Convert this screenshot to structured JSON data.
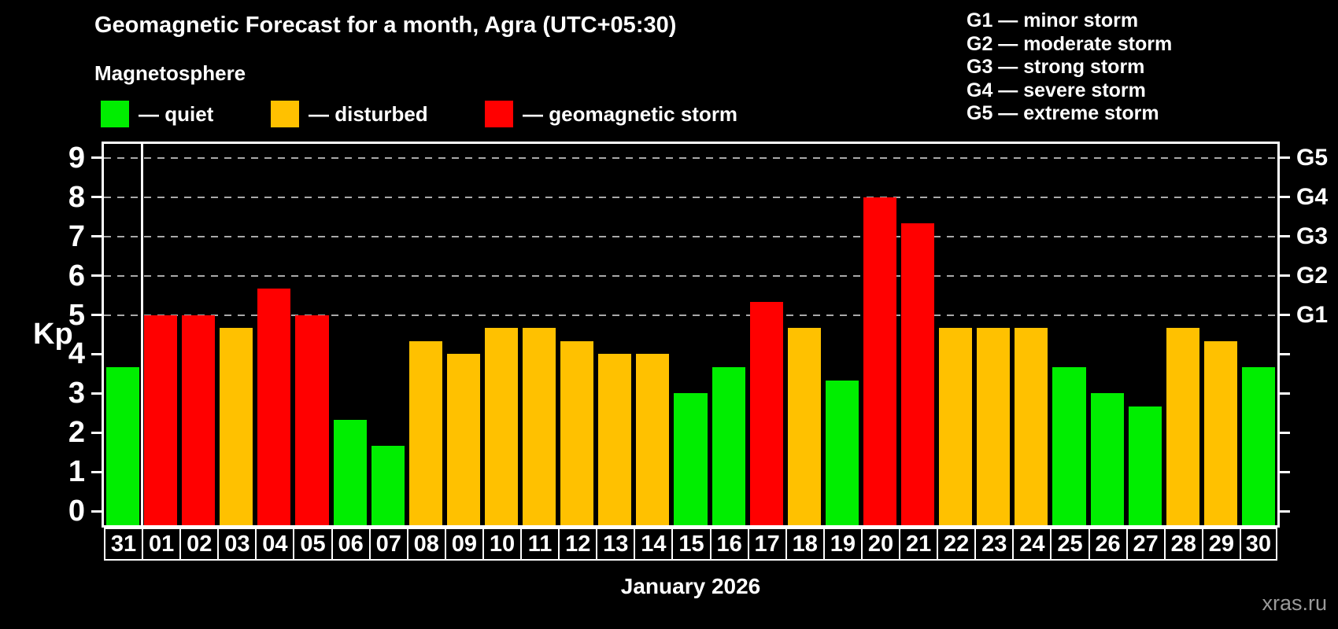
{
  "header": {
    "title": "Geomagnetic Forecast for a month, Agra (UTC+05:30)",
    "subtitle": "Magnetosphere"
  },
  "legend": {
    "items": [
      {
        "level": "quiet",
        "label": "— quiet"
      },
      {
        "level": "disturbed",
        "label": "— disturbed"
      },
      {
        "level": "storm",
        "label": "— geomagnetic storm"
      }
    ]
  },
  "storm_scale": {
    "items": [
      "G1 — minor storm",
      "G2 — moderate storm",
      "G3 — strong storm",
      "G4 — severe storm",
      "G5 — extreme storm"
    ]
  },
  "footer": {
    "month_label": "January 2026",
    "watermark": "xras.ru"
  },
  "chart_data": {
    "type": "bar",
    "title": "Geomagnetic Forecast for a month, Agra (UTC+05:30)",
    "xlabel": "January 2026",
    "ylabel": "Kp",
    "ylim": [
      0,
      9
    ],
    "yticks": [
      0,
      1,
      2,
      3,
      4,
      5,
      6,
      7,
      8,
      9
    ],
    "gridlines_at": [
      5,
      6,
      7,
      8,
      9
    ],
    "grid_style": "dashed horizontal gray lines at Kp 5–9 only",
    "right_axis": [
      {
        "value": 5,
        "label": "G1"
      },
      {
        "value": 6,
        "label": "G2"
      },
      {
        "value": 7,
        "label": "G3"
      },
      {
        "value": 8,
        "label": "G4"
      },
      {
        "value": 9,
        "label": "G5"
      }
    ],
    "level_colors": {
      "quiet": "#00ee00",
      "disturbed": "#ffc100",
      "storm": "#ff0000"
    },
    "background_color": "#000000",
    "axis_color": "#ffffff",
    "month_separator_after_index": 0,
    "categories": [
      "31",
      "01",
      "02",
      "03",
      "04",
      "05",
      "06",
      "07",
      "08",
      "09",
      "10",
      "11",
      "12",
      "13",
      "14",
      "15",
      "16",
      "17",
      "18",
      "19",
      "20",
      "21",
      "22",
      "23",
      "24",
      "25",
      "26",
      "27",
      "28",
      "29",
      "30"
    ],
    "days": [
      {
        "day": "31",
        "value": 3.67,
        "level": "quiet"
      },
      {
        "day": "01",
        "value": 5.0,
        "level": "storm"
      },
      {
        "day": "02",
        "value": 5.0,
        "level": "storm"
      },
      {
        "day": "03",
        "value": 4.67,
        "level": "disturbed"
      },
      {
        "day": "04",
        "value": 5.67,
        "level": "storm"
      },
      {
        "day": "05",
        "value": 5.0,
        "level": "storm"
      },
      {
        "day": "06",
        "value": 2.33,
        "level": "quiet"
      },
      {
        "day": "07",
        "value": 1.67,
        "level": "quiet"
      },
      {
        "day": "08",
        "value": 4.33,
        "level": "disturbed"
      },
      {
        "day": "09",
        "value": 4.0,
        "level": "disturbed"
      },
      {
        "day": "10",
        "value": 4.67,
        "level": "disturbed"
      },
      {
        "day": "11",
        "value": 4.67,
        "level": "disturbed"
      },
      {
        "day": "12",
        "value": 4.33,
        "level": "disturbed"
      },
      {
        "day": "13",
        "value": 4.0,
        "level": "disturbed"
      },
      {
        "day": "14",
        "value": 4.0,
        "level": "disturbed"
      },
      {
        "day": "15",
        "value": 3.0,
        "level": "quiet"
      },
      {
        "day": "16",
        "value": 3.67,
        "level": "quiet"
      },
      {
        "day": "17",
        "value": 5.33,
        "level": "storm"
      },
      {
        "day": "18",
        "value": 4.67,
        "level": "disturbed"
      },
      {
        "day": "19",
        "value": 3.33,
        "level": "quiet"
      },
      {
        "day": "20",
        "value": 8.0,
        "level": "storm"
      },
      {
        "day": "21",
        "value": 7.33,
        "level": "storm"
      },
      {
        "day": "22",
        "value": 4.67,
        "level": "disturbed"
      },
      {
        "day": "23",
        "value": 4.67,
        "level": "disturbed"
      },
      {
        "day": "24",
        "value": 4.67,
        "level": "disturbed"
      },
      {
        "day": "25",
        "value": 3.67,
        "level": "quiet"
      },
      {
        "day": "26",
        "value": 3.0,
        "level": "quiet"
      },
      {
        "day": "27",
        "value": 2.67,
        "level": "quiet"
      },
      {
        "day": "28",
        "value": 4.67,
        "level": "disturbed"
      },
      {
        "day": "29",
        "value": 4.33,
        "level": "disturbed"
      },
      {
        "day": "30",
        "value": 3.67,
        "level": "quiet"
      }
    ]
  }
}
